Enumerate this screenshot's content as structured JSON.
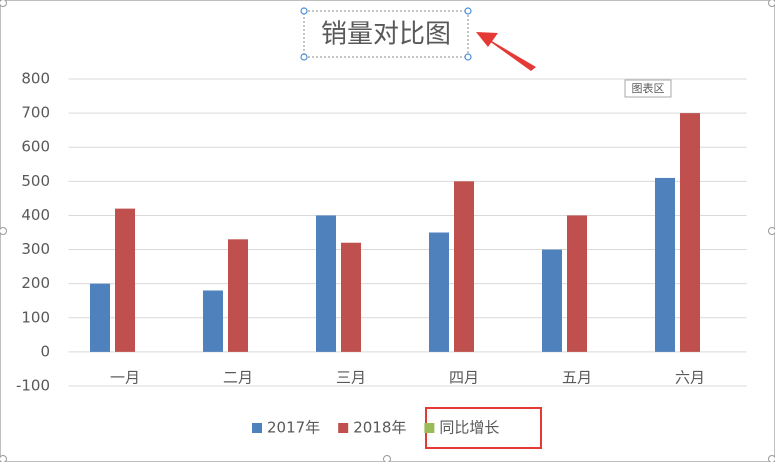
{
  "chart_data": {
    "type": "bar",
    "title": "销量对比图",
    "categories": [
      "一月",
      "二月",
      "三月",
      "四月",
      "五月",
      "六月"
    ],
    "series": [
      {
        "name": "2017年",
        "color": "#4f81bd",
        "values": [
          200,
          180,
          400,
          350,
          300,
          510
        ]
      },
      {
        "name": "2018年",
        "color": "#c0504d",
        "values": [
          420,
          330,
          320,
          500,
          400,
          700
        ]
      },
      {
        "name": "同比增长",
        "color": "#9bbb59",
        "values": [
          null,
          null,
          null,
          null,
          null,
          null
        ]
      }
    ],
    "ylim": [
      -100,
      800
    ],
    "yticks": [
      -100,
      0,
      100,
      200,
      300,
      400,
      500,
      600,
      700,
      800
    ],
    "grid": true,
    "legend": "bottom",
    "tooltip": "图表区"
  }
}
